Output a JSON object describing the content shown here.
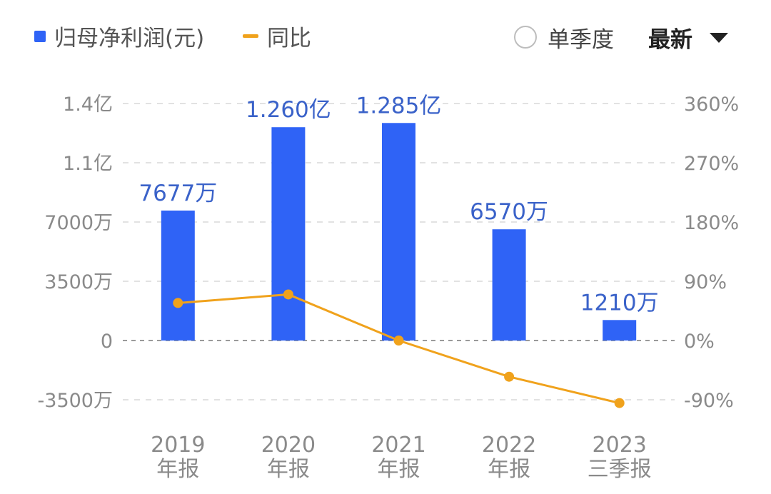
{
  "legend": {
    "bar_label": "归母净利润(元)",
    "line_label": "同比"
  },
  "controls": {
    "single_quarter_label": "单季度",
    "sort_label": "最新"
  },
  "colors": {
    "bar": "#2f63f6",
    "line": "#f0a21c",
    "data_label": "#3a62c9"
  },
  "chart_data": {
    "type": "bar",
    "categories": [
      [
        "2019",
        "年报"
      ],
      [
        "2020",
        "年报"
      ],
      [
        "2021",
        "年报"
      ],
      [
        "2022",
        "年报"
      ],
      [
        "2023",
        "三季报"
      ]
    ],
    "series": [
      {
        "name": "归母净利润(元)",
        "type": "bar",
        "axis": "left",
        "values_wan": [
          7677,
          12600,
          12850,
          6570,
          1210
        ],
        "labels": [
          "7677万",
          "1.260亿",
          "1.285亿",
          "6570万",
          "1210万"
        ]
      },
      {
        "name": "同比",
        "type": "line",
        "axis": "right",
        "values_pct": [
          57,
          70,
          0,
          -55,
          -95
        ]
      }
    ],
    "left_axis": {
      "ticks_wan": [
        -3500,
        0,
        3500,
        7000,
        10500,
        14000
      ],
      "tick_labels": [
        "-3500万",
        "0",
        "3500万",
        "7000万",
        "1.1亿",
        "1.4亿"
      ],
      "range_wan": [
        -3500,
        14000
      ]
    },
    "right_axis": {
      "ticks_pct": [
        -90,
        0,
        90,
        180,
        270,
        360
      ],
      "tick_labels": [
        "-90%",
        "0%",
        "90%",
        "180%",
        "270%",
        "360%"
      ],
      "range_pct": [
        -90,
        360
      ]
    },
    "grid": true,
    "legend_position": "top-left"
  }
}
